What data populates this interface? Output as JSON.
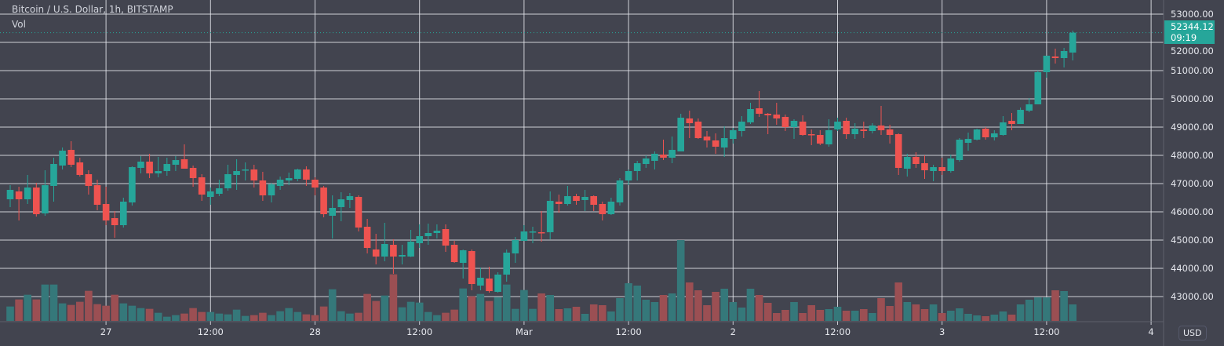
{
  "header": {
    "title": "Bitcoin / U.S. Dollar, 1h, BITSTAMP",
    "volume_label": "Vol",
    "currency": "USD"
  },
  "last_price": {
    "value": "52344.12",
    "countdown": "09:19",
    "value_num": 52344.12
  },
  "colors": {
    "background": "#42444f",
    "grid": "#e6e8ee",
    "up": "#26a69a",
    "down": "#ef5350",
    "volume_up": "#35787a",
    "volume_down": "#9b4f53",
    "last_price": "#26a69a"
  },
  "chart_data": {
    "type": "candlestick",
    "title": "Bitcoin / U.S. Dollar, 1h, BITSTAMP",
    "interval": "1h",
    "ylim": [
      42000,
      53000
    ],
    "y_ticks": [
      "43000.00",
      "44000.00",
      "45000.00",
      "46000.00",
      "47000.00",
      "48000.00",
      "49000.00",
      "50000.00",
      "51000.00",
      "52000.00",
      "53000.00"
    ],
    "x_ticks": [
      {
        "label": "27",
        "hour": 11
      },
      {
        "label": "12:00",
        "hour": 23
      },
      {
        "label": "28",
        "hour": 35
      },
      {
        "label": "12:00",
        "hour": 47
      },
      {
        "label": "Mar",
        "hour": 59
      },
      {
        "label": "12:00",
        "hour": 71
      },
      {
        "label": "2",
        "hour": 83
      },
      {
        "label": "12:00",
        "hour": 95
      },
      {
        "label": "3",
        "hour": 107
      },
      {
        "label": "12:00",
        "hour": 119
      },
      {
        "label": "4",
        "hour": 131
      }
    ],
    "grid": true,
    "ohlc": [
      [
        46444,
        46944,
        46167,
        46778
      ],
      [
        46722,
        46889,
        45694,
        46444
      ],
      [
        46444,
        47306,
        46278,
        46861
      ],
      [
        46861,
        47028,
        45833,
        45917
      ],
      [
        45944,
        47472,
        45861,
        46944
      ],
      [
        46917,
        47917,
        46361,
        47694
      ],
      [
        47639,
        48278,
        47500,
        48167
      ],
      [
        48194,
        48500,
        47583,
        47667
      ],
      [
        47750,
        47917,
        47250,
        47306
      ],
      [
        47333,
        47472,
        46611,
        46917
      ],
      [
        46944,
        47139,
        46056,
        46250
      ],
      [
        46278,
        46889,
        45528,
        45694
      ],
      [
        45778,
        46028,
        45083,
        45528
      ],
      [
        45528,
        46500,
        45444,
        46361
      ],
      [
        46333,
        47611,
        46222,
        47583
      ],
      [
        47556,
        47972,
        47361,
        47778
      ],
      [
        47778,
        48056,
        47194,
        47361
      ],
      [
        47361,
        47944,
        47222,
        47444
      ],
      [
        47444,
        47917,
        47278,
        47694
      ],
      [
        47667,
        47972,
        47444,
        47833
      ],
      [
        47861,
        48389,
        47528,
        47528
      ],
      [
        47556,
        47639,
        46889,
        47194
      ],
      [
        47222,
        47333,
        46389,
        46611
      ],
      [
        46528,
        46861,
        46250,
        46722
      ],
      [
        46639,
        47139,
        46556,
        46833
      ],
      [
        46833,
        47667,
        46750,
        47333
      ],
      [
        47306,
        47861,
        46778,
        47444
      ],
      [
        47472,
        47750,
        47111,
        47500
      ],
      [
        47500,
        47667,
        46861,
        47111
      ],
      [
        47111,
        47417,
        46389,
        46583
      ],
      [
        46583,
        47028,
        46333,
        46972
      ],
      [
        46917,
        47250,
        46778,
        47139
      ],
      [
        47111,
        47389,
        46944,
        47194
      ],
      [
        47167,
        47528,
        47083,
        47500
      ],
      [
        47500,
        47611,
        46917,
        47139
      ],
      [
        47139,
        47222,
        46583,
        46861
      ],
      [
        46861,
        46917,
        45806,
        45917
      ],
      [
        45861,
        46583,
        45056,
        46139
      ],
      [
        46167,
        46694,
        45667,
        46444
      ],
      [
        46417,
        46667,
        46139,
        46556
      ],
      [
        46528,
        46583,
        45306,
        45444
      ],
      [
        45472,
        45750,
        44528,
        44722
      ],
      [
        44667,
        45222,
        44139,
        44417
      ],
      [
        44417,
        45611,
        44250,
        44861
      ],
      [
        44833,
        45028,
        43806,
        44417
      ],
      [
        44417,
        44833,
        44139,
        44472
      ],
      [
        44417,
        45361,
        44400,
        44944
      ],
      [
        44889,
        45556,
        44722,
        45139
      ],
      [
        45139,
        45583,
        44833,
        45250
      ],
      [
        45250,
        45556,
        45056,
        45333
      ],
      [
        45389,
        45556,
        44583,
        44806
      ],
      [
        44833,
        44972,
        44194,
        44222
      ],
      [
        44194,
        44667,
        43639,
        44639
      ],
      [
        44611,
        44667,
        43222,
        43444
      ],
      [
        43389,
        44028,
        43222,
        43667
      ],
      [
        43639,
        44056,
        43139,
        43194
      ],
      [
        43167,
        43861,
        43139,
        43778
      ],
      [
        43778,
        44667,
        43528,
        44556
      ],
      [
        44528,
        45111,
        44194,
        45000
      ],
      [
        44972,
        45528,
        44972,
        45306
      ],
      [
        45278,
        45472,
        44889,
        45306
      ],
      [
        45278,
        46028,
        44944,
        45250
      ],
      [
        45278,
        46722,
        45028,
        46389
      ],
      [
        46361,
        46611,
        45972,
        46278
      ],
      [
        46278,
        46917,
        46222,
        46556
      ],
      [
        46556,
        46639,
        46250,
        46389
      ],
      [
        46417,
        46778,
        46028,
        46528
      ],
      [
        46556,
        46583,
        46028,
        46250
      ],
      [
        46278,
        46361,
        45694,
        45917
      ],
      [
        45917,
        46500,
        45889,
        46361
      ],
      [
        46333,
        47194,
        46222,
        47111
      ],
      [
        47111,
        47500,
        46944,
        47444
      ],
      [
        47444,
        47806,
        47111,
        47722
      ],
      [
        47694,
        48000,
        47556,
        47889
      ],
      [
        47806,
        48139,
        47500,
        48056
      ],
      [
        48028,
        48556,
        47833,
        47917
      ],
      [
        47917,
        48667,
        47722,
        48194
      ],
      [
        48139,
        49472,
        48139,
        49333
      ],
      [
        49306,
        49583,
        48611,
        49139
      ],
      [
        49194,
        49306,
        48583,
        48611
      ],
      [
        48667,
        48861,
        48278,
        48528
      ],
      [
        48528,
        48778,
        48056,
        48306
      ],
      [
        48278,
        49028,
        47944,
        48611
      ],
      [
        48583,
        48972,
        48417,
        48889
      ],
      [
        48861,
        49389,
        48667,
        49194
      ],
      [
        49167,
        49861,
        49111,
        49639
      ],
      [
        49667,
        50278,
        49361,
        49472
      ],
      [
        49472,
        49500,
        48750,
        49417
      ],
      [
        49444,
        49861,
        49083,
        49306
      ],
      [
        49361,
        49444,
        48861,
        49000
      ],
      [
        49000,
        49278,
        48583,
        49222
      ],
      [
        49194,
        49417,
        48694,
        48722
      ],
      [
        48750,
        48917,
        48361,
        48722
      ],
      [
        48722,
        48889,
        48361,
        48417
      ],
      [
        48389,
        49278,
        48306,
        48889
      ],
      [
        48917,
        49333,
        48861,
        49194
      ],
      [
        49222,
        49333,
        48583,
        48750
      ],
      [
        48750,
        49139,
        48583,
        48944
      ],
      [
        48917,
        49194,
        48611,
        48861
      ],
      [
        48861,
        49139,
        48778,
        49056
      ],
      [
        49056,
        49750,
        48722,
        48889
      ],
      [
        48917,
        49083,
        48417,
        48722
      ],
      [
        48750,
        48778,
        47306,
        47556
      ],
      [
        47528,
        48056,
        47250,
        47944
      ],
      [
        47944,
        48111,
        47556,
        47694
      ],
      [
        47722,
        48000,
        47167,
        47472
      ],
      [
        47444,
        47667,
        47083,
        47583
      ],
      [
        47583,
        47917,
        47306,
        47444
      ],
      [
        47444,
        48028,
        47389,
        47889
      ],
      [
        47833,
        48611,
        47778,
        48556
      ],
      [
        48444,
        48806,
        48167,
        48583
      ],
      [
        48556,
        48944,
        48528,
        48917
      ],
      [
        48944,
        49000,
        48556,
        48639
      ],
      [
        48639,
        48889,
        48528,
        48778
      ],
      [
        48722,
        49389,
        48694,
        49167
      ],
      [
        49222,
        49500,
        48889,
        49111
      ],
      [
        49111,
        49694,
        49111,
        49611
      ],
      [
        49583,
        50028,
        49528,
        49806
      ],
      [
        49806,
        51000,
        49806,
        50944
      ],
      [
        50944,
        51528,
        50750,
        51528
      ],
      [
        51500,
        51778,
        51250,
        51444
      ],
      [
        51444,
        51806,
        51111,
        51694
      ],
      [
        51639,
        52417,
        51361,
        52344
      ]
    ],
    "volume_relative": [
      55,
      82,
      100,
      82,
      139,
      139,
      67,
      61,
      73,
      115,
      64,
      58,
      100,
      67,
      58,
      49,
      46,
      31,
      16,
      22,
      28,
      49,
      34,
      34,
      28,
      25,
      43,
      19,
      22,
      31,
      22,
      37,
      49,
      34,
      25,
      22,
      55,
      121,
      37,
      28,
      31,
      103,
      76,
      97,
      178,
      52,
      73,
      70,
      34,
      22,
      31,
      43,
      124,
      94,
      103,
      76,
      91,
      139,
      46,
      118,
      46,
      105,
      99,
      45,
      48,
      54,
      27,
      63,
      60,
      36,
      87,
      144,
      135,
      81,
      72,
      99,
      105,
      309,
      147,
      117,
      60,
      111,
      123,
      72,
      51,
      123,
      99,
      69,
      30,
      42,
      72,
      30,
      60,
      42,
      45,
      54,
      39,
      39,
      45,
      30,
      87,
      57,
      147,
      72,
      63,
      45,
      63,
      30,
      39,
      48,
      27,
      21,
      18,
      24,
      36,
      24,
      63,
      81,
      90,
      90,
      117,
      114,
      63
    ]
  }
}
